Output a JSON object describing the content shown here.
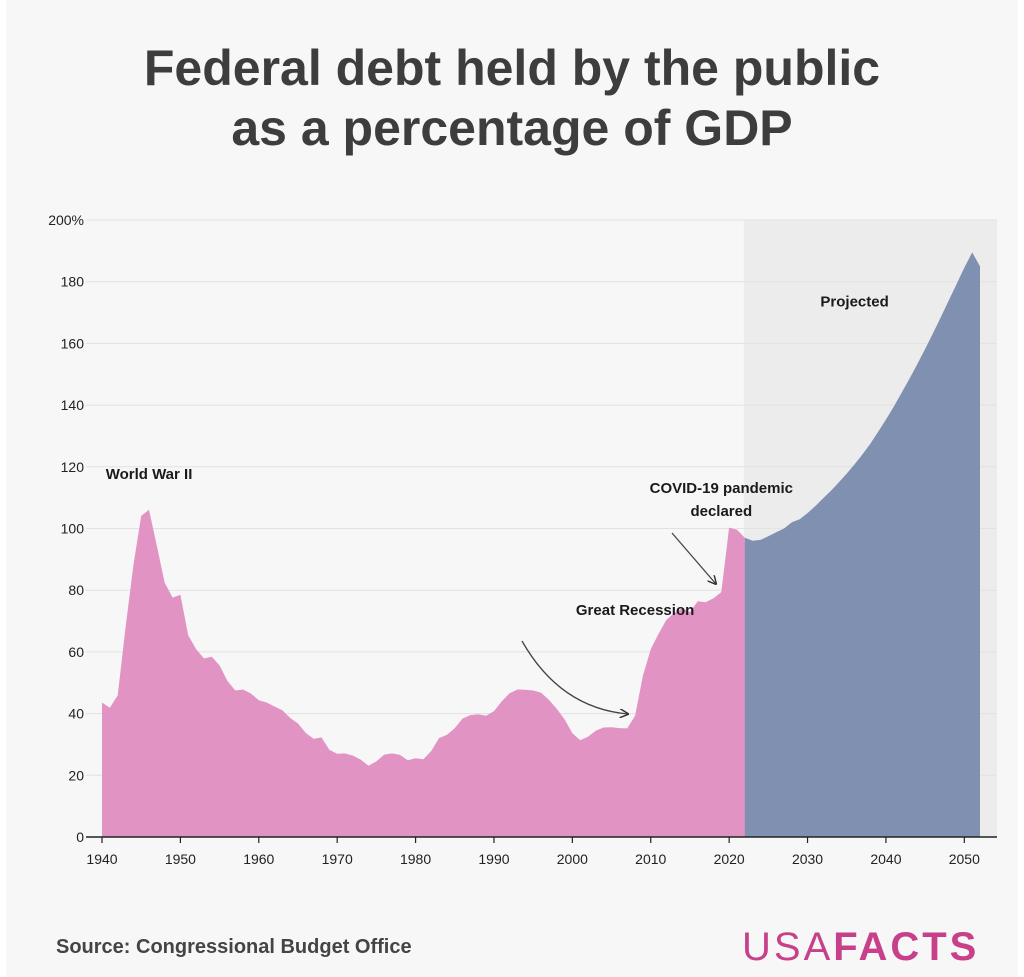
{
  "title_lines": [
    "Federal debt held by the public",
    "as a percentage of GDP"
  ],
  "source": "Source: Congressional Budget Office",
  "logo": {
    "part1": "USA",
    "part2": "FACTS"
  },
  "colors": {
    "historical": "#e194c4",
    "projected": "#7f90b1",
    "projected_band": "#ececec",
    "grid": "#e2e2e2",
    "logo": "#c8408a"
  },
  "chart_data": {
    "type": "area",
    "xlim": [
      1940,
      2052
    ],
    "ylim": [
      0,
      200
    ],
    "x_ticks": [
      1940,
      1950,
      1960,
      1970,
      1980,
      1990,
      2000,
      2010,
      2020,
      2030,
      2040,
      2050
    ],
    "y_ticks": [
      0,
      20,
      40,
      60,
      80,
      100,
      120,
      140,
      160,
      180,
      200
    ],
    "y_tick_labels": [
      "0",
      "20",
      "40",
      "60",
      "80",
      "100",
      "120",
      "140",
      "160",
      "180",
      "200%"
    ],
    "grid": "horizontal",
    "series": [
      {
        "key": "historical",
        "x": [
          1940,
          1941,
          1942,
          1943,
          1944,
          1945,
          1946,
          1947,
          1948,
          1949,
          1950,
          1951,
          1952,
          1953,
          1954,
          1955,
          1956,
          1957,
          1958,
          1959,
          1960,
          1961,
          1962,
          1963,
          1964,
          1965,
          1966,
          1967,
          1968,
          1969,
          1970,
          1971,
          1972,
          1973,
          1974,
          1975,
          1976,
          1977,
          1978,
          1979,
          1980,
          1981,
          1982,
          1983,
          1984,
          1985,
          1986,
          1987,
          1988,
          1989,
          1990,
          1991,
          1992,
          1993,
          1994,
          1995,
          1996,
          1997,
          1998,
          1999,
          2000,
          2001,
          2002,
          2003,
          2004,
          2005,
          2006,
          2007,
          2008,
          2009,
          2010,
          2011,
          2012,
          2013,
          2014,
          2015,
          2016,
          2017,
          2018,
          2019,
          2020,
          2021,
          2022
        ],
        "y": [
          43.6,
          41.9,
          45.9,
          67.8,
          88.1,
          104.1,
          106.1,
          94.3,
          82.4,
          77.6,
          78.5,
          65.4,
          60.9,
          57.9,
          58.4,
          55.6,
          50.6,
          47.5,
          47.8,
          46.5,
          44.3,
          43.6,
          42.3,
          41.1,
          38.6,
          36.8,
          33.7,
          31.8,
          32.3,
          28.3,
          27.0,
          27.1,
          26.4,
          25.1,
          23.1,
          24.5,
          26.7,
          27.1,
          26.6,
          24.9,
          25.5,
          25.2,
          27.9,
          32.1,
          33.1,
          35.3,
          38.4,
          39.5,
          39.8,
          39.3,
          40.8,
          44.0,
          46.6,
          47.8,
          47.7,
          47.5,
          46.8,
          44.5,
          41.6,
          38.2,
          33.6,
          31.4,
          32.5,
          34.5,
          35.5,
          35.6,
          35.3,
          35.2,
          39.3,
          52.3,
          60.9,
          65.9,
          70.4,
          72.6,
          74.1,
          72.9,
          76.4,
          76.1,
          77.4,
          79.4,
          100.3,
          99.6,
          97.0
        ]
      },
      {
        "key": "projected",
        "x": [
          2022,
          2023,
          2024,
          2025,
          2026,
          2027,
          2028,
          2029,
          2030,
          2031,
          2032,
          2033,
          2034,
          2035,
          2036,
          2037,
          2038,
          2039,
          2040,
          2041,
          2042,
          2043,
          2044,
          2045,
          2046,
          2047,
          2048,
          2049,
          2050,
          2051,
          2052
        ],
        "y": [
          97.0,
          96.0,
          96.3,
          97.5,
          98.8,
          100.0,
          102.0,
          103.0,
          105.0,
          107.3,
          109.8,
          112.3,
          115.0,
          117.8,
          120.8,
          124.0,
          127.5,
          131.3,
          135.3,
          139.5,
          144.0,
          148.5,
          153.3,
          158.2,
          163.3,
          168.5,
          173.8,
          179.2,
          184.5,
          189.5,
          185.0
        ]
      }
    ],
    "projected_region": {
      "x_start": 2022,
      "x_end": 2052
    },
    "annotations": [
      {
        "text": "World War II",
        "x": 1946,
        "y": 116
      },
      {
        "text": "Great Recession",
        "x": 2008,
        "y": 72
      },
      {
        "text": "COVID-19 pandemic",
        "x": 2019,
        "y": 111.5
      },
      {
        "text": "declared",
        "x": 2019,
        "y": 104
      },
      {
        "text": "Projected",
        "x": 2036,
        "y": 172
      }
    ]
  }
}
